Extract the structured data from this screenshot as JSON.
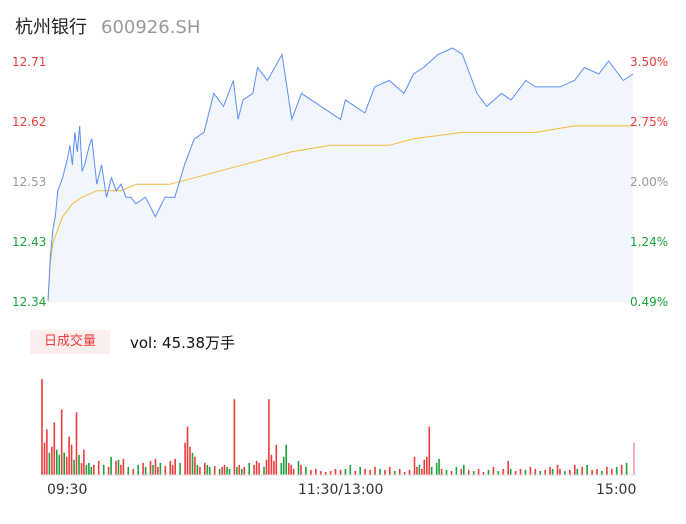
{
  "stock": {
    "name": "杭州银行",
    "code": "600926.SH"
  },
  "chart_data": {
    "type": "line",
    "price_axis": {
      "ticks": [
        "12.71",
        "12.62",
        "12.53",
        "12.43",
        "12.34"
      ],
      "range": [
        12.34,
        12.71
      ]
    },
    "percent_axis": {
      "ticks": [
        "3.50%",
        "2.75%",
        "2.00%",
        "1.24%",
        "0.49%"
      ],
      "range": [
        0.49,
        3.5
      ]
    },
    "time_axis": {
      "ticks": [
        "09:30",
        "11:30/13:00",
        "15:00"
      ],
      "session_minutes": 240
    },
    "colors": {
      "up": "#ef3b3b",
      "down": "#1aa33a",
      "neutral": "#999999",
      "price_line": "#5b8ff9",
      "avg_line": "#f5b83d"
    },
    "series": [
      {
        "key": "price",
        "x": [
          0,
          1,
          2,
          3,
          4,
          6,
          8,
          9,
          10,
          11,
          12,
          13,
          14,
          15,
          17,
          18,
          20,
          22,
          24,
          26,
          28,
          30,
          32,
          34,
          36,
          40,
          44,
          48,
          52,
          56,
          60,
          64,
          68,
          72,
          76,
          78,
          80,
          84,
          86,
          90,
          96,
          100,
          104,
          108,
          112,
          116,
          120,
          122,
          126,
          130,
          134,
          140,
          146,
          150,
          154,
          160,
          166,
          170,
          176,
          180,
          186,
          190,
          196,
          200,
          206,
          210,
          216,
          220,
          226,
          230,
          236,
          240
        ],
        "y": [
          12.34,
          12.41,
          12.45,
          12.47,
          12.51,
          12.53,
          12.56,
          12.58,
          12.55,
          12.6,
          12.57,
          12.61,
          12.54,
          12.55,
          12.58,
          12.59,
          12.52,
          12.55,
          12.5,
          12.53,
          12.51,
          12.52,
          12.5,
          12.5,
          12.49,
          12.5,
          12.47,
          12.5,
          12.5,
          12.55,
          12.59,
          12.6,
          12.66,
          12.64,
          12.68,
          12.62,
          12.65,
          12.66,
          12.7,
          12.68,
          12.72,
          12.62,
          12.66,
          12.65,
          12.64,
          12.63,
          12.62,
          12.65,
          12.64,
          12.63,
          12.67,
          12.68,
          12.66,
          12.69,
          12.7,
          12.72,
          12.73,
          12.72,
          12.66,
          12.64,
          12.66,
          12.65,
          12.68,
          12.67,
          12.67,
          12.67,
          12.68,
          12.7,
          12.69,
          12.71,
          12.68,
          12.69
        ]
      },
      {
        "key": "average",
        "x": [
          0,
          1,
          2,
          4,
          6,
          10,
          14,
          20,
          30,
          36,
          44,
          50,
          60,
          70,
          80,
          90,
          100,
          116,
          140,
          150,
          170,
          190,
          200,
          216,
          240
        ],
        "y": [
          12.34,
          12.4,
          12.43,
          12.45,
          12.47,
          12.49,
          12.5,
          12.51,
          12.51,
          12.52,
          12.52,
          12.52,
          12.53,
          12.54,
          12.55,
          12.56,
          12.57,
          12.58,
          12.58,
          12.59,
          12.6,
          12.6,
          12.6,
          12.61,
          12.61
        ]
      }
    ]
  },
  "volume": {
    "tab_label": "日成交量",
    "summary": "vol: 45.38万手",
    "bars": [
      {
        "t": 0,
        "v": 95,
        "d": "up"
      },
      {
        "t": 1,
        "v": 32,
        "d": "up"
      },
      {
        "t": 2,
        "v": 45,
        "d": "up"
      },
      {
        "t": 3,
        "v": 22,
        "d": "down"
      },
      {
        "t": 4,
        "v": 28,
        "d": "up"
      },
      {
        "t": 5,
        "v": 52,
        "d": "up"
      },
      {
        "t": 6,
        "v": 25,
        "d": "down"
      },
      {
        "t": 7,
        "v": 20,
        "d": "down"
      },
      {
        "t": 8,
        "v": 65,
        "d": "up"
      },
      {
        "t": 9,
        "v": 22,
        "d": "down"
      },
      {
        "t": 10,
        "v": 18,
        "d": "up"
      },
      {
        "t": 11,
        "v": 38,
        "d": "up"
      },
      {
        "t": 12,
        "v": 30,
        "d": "up"
      },
      {
        "t": 13,
        "v": 15,
        "d": "down"
      },
      {
        "t": 14,
        "v": 62,
        "d": "up"
      },
      {
        "t": 15,
        "v": 20,
        "d": "down"
      },
      {
        "t": 16,
        "v": 12,
        "d": "up"
      },
      {
        "t": 17,
        "v": 25,
        "d": "up"
      },
      {
        "t": 18,
        "v": 10,
        "d": "down"
      },
      {
        "t": 19,
        "v": 12,
        "d": "down"
      },
      {
        "t": 20,
        "v": 8,
        "d": "down"
      },
      {
        "t": 21,
        "v": 10,
        "d": "up"
      },
      {
        "t": 23,
        "v": 14,
        "d": "up"
      },
      {
        "t": 25,
        "v": 10,
        "d": "down"
      },
      {
        "t": 27,
        "v": 8,
        "d": "up"
      },
      {
        "t": 28,
        "v": 18,
        "d": "down"
      },
      {
        "t": 30,
        "v": 14,
        "d": "up"
      },
      {
        "t": 31,
        "v": 15,
        "d": "down"
      },
      {
        "t": 32,
        "v": 10,
        "d": "up"
      },
      {
        "t": 33,
        "v": 16,
        "d": "up"
      },
      {
        "t": 35,
        "v": 8,
        "d": "down"
      },
      {
        "t": 37,
        "v": 6,
        "d": "up"
      },
      {
        "t": 39,
        "v": 10,
        "d": "down"
      },
      {
        "t": 41,
        "v": 12,
        "d": "up"
      },
      {
        "t": 42,
        "v": 8,
        "d": "down"
      },
      {
        "t": 44,
        "v": 14,
        "d": "up"
      },
      {
        "t": 45,
        "v": 10,
        "d": "down"
      },
      {
        "t": 46,
        "v": 16,
        "d": "up"
      },
      {
        "t": 47,
        "v": 8,
        "d": "up"
      },
      {
        "t": 48,
        "v": 12,
        "d": "down"
      },
      {
        "t": 50,
        "v": 9,
        "d": "up"
      },
      {
        "t": 52,
        "v": 14,
        "d": "up"
      },
      {
        "t": 53,
        "v": 10,
        "d": "up"
      },
      {
        "t": 54,
        "v": 16,
        "d": "up"
      },
      {
        "t": 56,
        "v": 12,
        "d": "down"
      },
      {
        "t": 58,
        "v": 32,
        "d": "up"
      },
      {
        "t": 59,
        "v": 48,
        "d": "up"
      },
      {
        "t": 60,
        "v": 28,
        "d": "up"
      },
      {
        "t": 61,
        "v": 22,
        "d": "down"
      },
      {
        "t": 62,
        "v": 18,
        "d": "up"
      },
      {
        "t": 63,
        "v": 10,
        "d": "down"
      },
      {
        "t": 64,
        "v": 8,
        "d": "up"
      },
      {
        "t": 66,
        "v": 12,
        "d": "up"
      },
      {
        "t": 67,
        "v": 10,
        "d": "down"
      },
      {
        "t": 68,
        "v": 8,
        "d": "down"
      },
      {
        "t": 70,
        "v": 9,
        "d": "up"
      },
      {
        "t": 72,
        "v": 6,
        "d": "down"
      },
      {
        "t": 73,
        "v": 8,
        "d": "up"
      },
      {
        "t": 74,
        "v": 10,
        "d": "up"
      },
      {
        "t": 75,
        "v": 8,
        "d": "down"
      },
      {
        "t": 76,
        "v": 6,
        "d": "down"
      },
      {
        "t": 78,
        "v": 75,
        "d": "up"
      },
      {
        "t": 79,
        "v": 8,
        "d": "down"
      },
      {
        "t": 80,
        "v": 10,
        "d": "up"
      },
      {
        "t": 81,
        "v": 6,
        "d": "down"
      },
      {
        "t": 82,
        "v": 8,
        "d": "up"
      },
      {
        "t": 84,
        "v": 12,
        "d": "down"
      },
      {
        "t": 86,
        "v": 10,
        "d": "up"
      },
      {
        "t": 87,
        "v": 14,
        "d": "up"
      },
      {
        "t": 88,
        "v": 12,
        "d": "up"
      },
      {
        "t": 90,
        "v": 8,
        "d": "down"
      },
      {
        "t": 91,
        "v": 15,
        "d": "up"
      },
      {
        "t": 92,
        "v": 75,
        "d": "up"
      },
      {
        "t": 93,
        "v": 20,
        "d": "up"
      },
      {
        "t": 94,
        "v": 14,
        "d": "up"
      },
      {
        "t": 95,
        "v": 30,
        "d": "up"
      },
      {
        "t": 97,
        "v": 12,
        "d": "down"
      },
      {
        "t": 98,
        "v": 18,
        "d": "down"
      },
      {
        "t": 99,
        "v": 30,
        "d": "down"
      },
      {
        "t": 100,
        "v": 12,
        "d": "up"
      },
      {
        "t": 101,
        "v": 10,
        "d": "up"
      },
      {
        "t": 102,
        "v": 6,
        "d": "up"
      },
      {
        "t": 104,
        "v": 14,
        "d": "down"
      },
      {
        "t": 105,
        "v": 10,
        "d": "up"
      },
      {
        "t": 107,
        "v": 8,
        "d": "down"
      },
      {
        "t": 109,
        "v": 5,
        "d": "up"
      },
      {
        "t": 111,
        "v": 6,
        "d": "up"
      },
      {
        "t": 113,
        "v": 4,
        "d": "up"
      },
      {
        "t": 115,
        "v": 3,
        "d": "up"
      },
      {
        "t": 117,
        "v": 4,
        "d": "up"
      },
      {
        "t": 119,
        "v": 6,
        "d": "up"
      },
      {
        "t": 121,
        "v": 5,
        "d": "up"
      },
      {
        "t": 123,
        "v": 6,
        "d": "down"
      },
      {
        "t": 125,
        "v": 10,
        "d": "down"
      },
      {
        "t": 127,
        "v": 4,
        "d": "up"
      },
      {
        "t": 129,
        "v": 8,
        "d": "down"
      },
      {
        "t": 131,
        "v": 6,
        "d": "up"
      },
      {
        "t": 133,
        "v": 5,
        "d": "up"
      },
      {
        "t": 135,
        "v": 8,
        "d": "up"
      },
      {
        "t": 137,
        "v": 6,
        "d": "down"
      },
      {
        "t": 139,
        "v": 5,
        "d": "up"
      },
      {
        "t": 141,
        "v": 8,
        "d": "up"
      },
      {
        "t": 143,
        "v": 4,
        "d": "down"
      },
      {
        "t": 145,
        "v": 6,
        "d": "up"
      },
      {
        "t": 147,
        "v": 3,
        "d": "up"
      },
      {
        "t": 149,
        "v": 5,
        "d": "up"
      },
      {
        "t": 151,
        "v": 18,
        "d": "up"
      },
      {
        "t": 152,
        "v": 8,
        "d": "up"
      },
      {
        "t": 153,
        "v": 10,
        "d": "down"
      },
      {
        "t": 154,
        "v": 6,
        "d": "up"
      },
      {
        "t": 155,
        "v": 15,
        "d": "up"
      },
      {
        "t": 156,
        "v": 18,
        "d": "up"
      },
      {
        "t": 157,
        "v": 48,
        "d": "up"
      },
      {
        "t": 158,
        "v": 8,
        "d": "down"
      },
      {
        "t": 160,
        "v": 12,
        "d": "down"
      },
      {
        "t": 161,
        "v": 16,
        "d": "down"
      },
      {
        "t": 162,
        "v": 6,
        "d": "up"
      },
      {
        "t": 164,
        "v": 5,
        "d": "down"
      },
      {
        "t": 166,
        "v": 4,
        "d": "up"
      },
      {
        "t": 168,
        "v": 8,
        "d": "down"
      },
      {
        "t": 170,
        "v": 6,
        "d": "up"
      },
      {
        "t": 171,
        "v": 10,
        "d": "down"
      },
      {
        "t": 173,
        "v": 5,
        "d": "up"
      },
      {
        "t": 175,
        "v": 4,
        "d": "down"
      },
      {
        "t": 177,
        "v": 6,
        "d": "up"
      },
      {
        "t": 179,
        "v": 3,
        "d": "up"
      },
      {
        "t": 181,
        "v": 5,
        "d": "down"
      },
      {
        "t": 183,
        "v": 8,
        "d": "up"
      },
      {
        "t": 185,
        "v": 4,
        "d": "down"
      },
      {
        "t": 187,
        "v": 6,
        "d": "up"
      },
      {
        "t": 189,
        "v": 14,
        "d": "up"
      },
      {
        "t": 190,
        "v": 6,
        "d": "down"
      },
      {
        "t": 192,
        "v": 4,
        "d": "up"
      },
      {
        "t": 194,
        "v": 6,
        "d": "up"
      },
      {
        "t": 196,
        "v": 5,
        "d": "down"
      },
      {
        "t": 198,
        "v": 8,
        "d": "up"
      },
      {
        "t": 200,
        "v": 6,
        "d": "up"
      },
      {
        "t": 202,
        "v": 4,
        "d": "down"
      },
      {
        "t": 204,
        "v": 5,
        "d": "up"
      },
      {
        "t": 206,
        "v": 8,
        "d": "up"
      },
      {
        "t": 207,
        "v": 6,
        "d": "down"
      },
      {
        "t": 209,
        "v": 10,
        "d": "up"
      },
      {
        "t": 210,
        "v": 6,
        "d": "up"
      },
      {
        "t": 212,
        "v": 4,
        "d": "down"
      },
      {
        "t": 214,
        "v": 5,
        "d": "up"
      },
      {
        "t": 216,
        "v": 10,
        "d": "up"
      },
      {
        "t": 217,
        "v": 6,
        "d": "down"
      },
      {
        "t": 219,
        "v": 8,
        "d": "up"
      },
      {
        "t": 221,
        "v": 10,
        "d": "down"
      },
      {
        "t": 223,
        "v": 5,
        "d": "up"
      },
      {
        "t": 225,
        "v": 6,
        "d": "up"
      },
      {
        "t": 227,
        "v": 4,
        "d": "down"
      },
      {
        "t": 229,
        "v": 8,
        "d": "up"
      },
      {
        "t": 231,
        "v": 6,
        "d": "up"
      },
      {
        "t": 233,
        "v": 8,
        "d": "down"
      },
      {
        "t": 235,
        "v": 10,
        "d": "up"
      },
      {
        "t": 237,
        "v": 12,
        "d": "down"
      },
      {
        "t": 240,
        "v": 32,
        "d": "neutral"
      }
    ]
  }
}
